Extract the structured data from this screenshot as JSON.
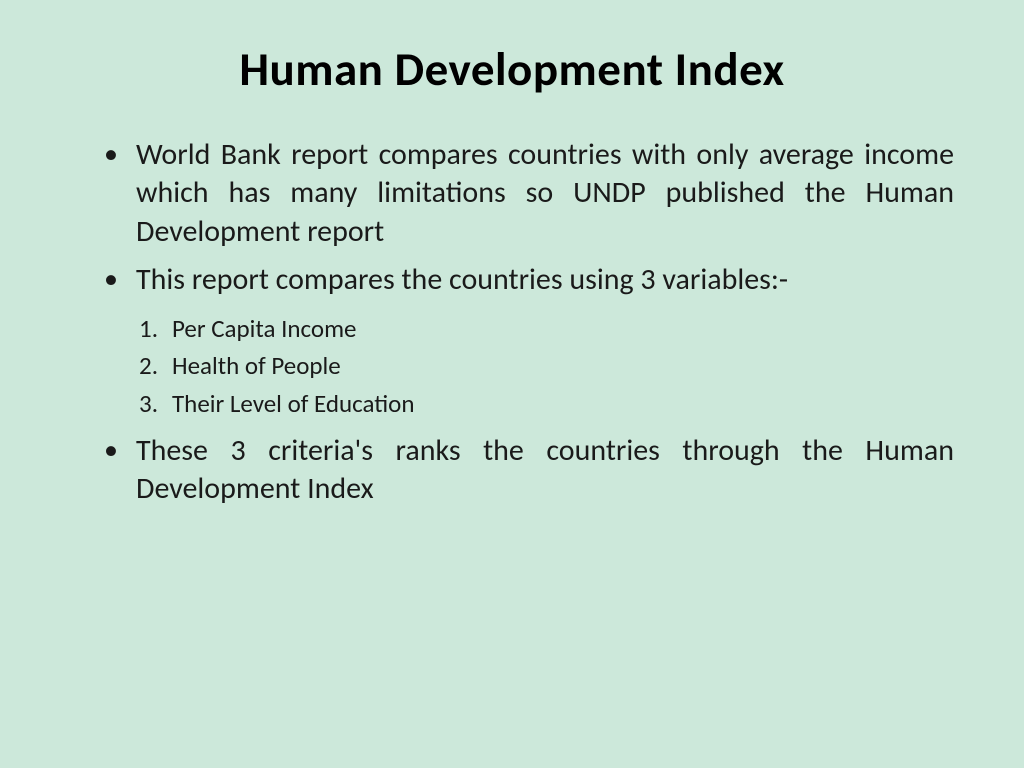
{
  "slide": {
    "title": "Human Development Index",
    "bullets": {
      "b1": "World Bank report compares countries with only average income which has many limitations so UNDP published the Human Development report",
      "b2": "This report compares the countries using 3 variables:-",
      "b3": "These 3 criteria's ranks the countries through the Human Development Index"
    },
    "numbered": {
      "n1": "Per Capita Income",
      "n2": "Health of People",
      "n3": "Their Level of Education"
    }
  },
  "styling": {
    "background_color": "#cce8da",
    "title_fontsize": 47,
    "title_weight": 700,
    "bullet_fontsize": 30,
    "numbered_fontsize": 25,
    "text_color": "#1a1a1a",
    "font_family": "Calibri"
  }
}
